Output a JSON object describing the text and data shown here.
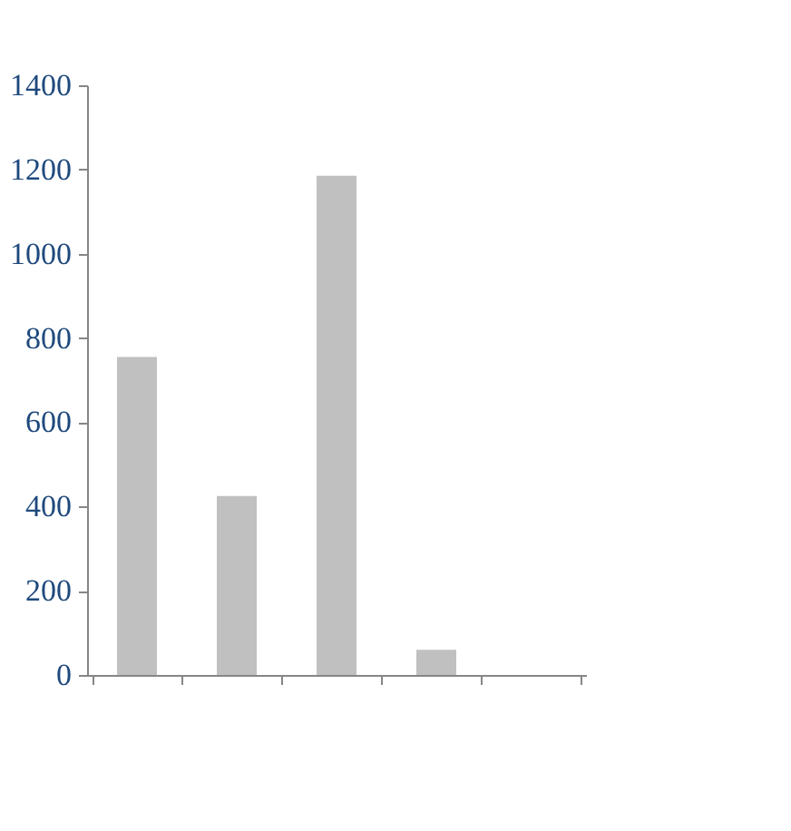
{
  "chart_data": {
    "type": "bar",
    "categories": [
      null,
      null,
      null,
      null,
      null
    ],
    "values": [
      755,
      425,
      1185,
      60,
      null
    ],
    "color": "#c0c0c0",
    "ylim": [
      0,
      1400
    ],
    "yticks": [
      0,
      200,
      400,
      600,
      800,
      1000,
      1200,
      1400
    ],
    "grid": false,
    "tick_labels": "y"
  }
}
